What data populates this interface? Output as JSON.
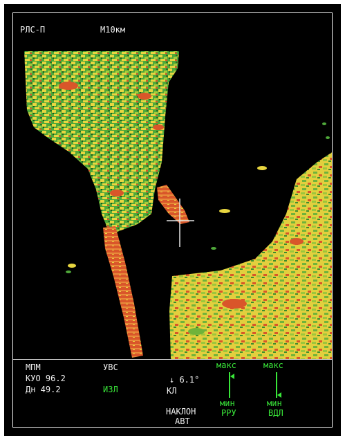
{
  "header": {
    "mode": "РЛС-П",
    "scale": "М10км"
  },
  "status": {
    "mpm": "МПМ",
    "kuo": "КУО 96.2",
    "dn": "Дн 49.2",
    "uvs": "УВС",
    "izl": "ИЗЛ",
    "tilt_angle": "↓ 6.1°",
    "kl": "КЛ",
    "tilt_label": "НАКЛОН",
    "tilt_mode": "АВТ"
  },
  "gauges": {
    "rru": {
      "max": "макс",
      "min": "мин",
      "name": "РРУ",
      "level": 0.85
    },
    "vdl": {
      "max": "макс",
      "min": "мин",
      "name": "ВДЛ",
      "level": 0.1
    }
  },
  "colors": {
    "green_text": "#39e639",
    "echo_red": "#d9562a",
    "echo_yellow": "#e8d640",
    "echo_green": "#4fa83a"
  }
}
